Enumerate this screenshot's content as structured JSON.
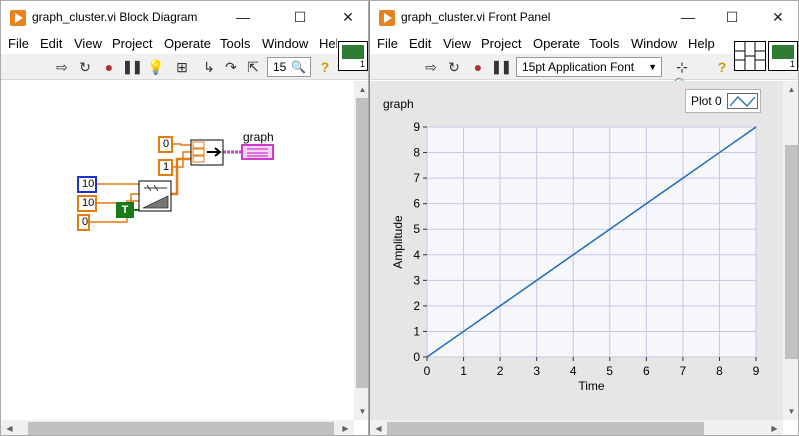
{
  "block_diagram": {
    "title": "graph_cluster.vi Block Diagram",
    "window_controls": {
      "minimize": "—",
      "maximize": "☐",
      "close": "✕"
    },
    "menu": [
      "File",
      "Edit",
      "View",
      "Project",
      "Operate",
      "Tools",
      "Window",
      "Help"
    ],
    "toolbar": {
      "zoom_label": "15"
    },
    "constants": {
      "x0": "0",
      "dx": "1",
      "samples": "10",
      "amplitude": "10",
      "offset": "0",
      "reset": "T"
    },
    "indicator_label": "graph",
    "connector_icon_number": "1"
  },
  "front_panel": {
    "title": "graph_cluster.vi Front Panel",
    "window_controls": {
      "minimize": "—",
      "maximize": "☐",
      "close": "✕"
    },
    "menu": [
      "File",
      "Edit",
      "View",
      "Project",
      "Operate",
      "Tools",
      "Window",
      "Help"
    ],
    "toolbar": {
      "font": "15pt Application Font"
    },
    "connector_icon_number": "1",
    "graph_label": "graph",
    "legend": {
      "plot_name": "Plot 0"
    }
  },
  "colors": {
    "plot_line": "#1f6bb5",
    "plot_bg": "#f5f7fa",
    "grid": "#c9c6e8",
    "wire_int": "#e07c10",
    "wire_cluster": "#cc3bcc"
  },
  "chart_data": {
    "type": "line",
    "title": "",
    "xlabel": "Time",
    "ylabel": "Amplitude",
    "xlim": [
      0,
      9
    ],
    "ylim": [
      0,
      9
    ],
    "xticks": [
      0,
      1,
      2,
      3,
      4,
      5,
      6,
      7,
      8,
      9
    ],
    "yticks": [
      0,
      1,
      2,
      3,
      4,
      5,
      6,
      7,
      8,
      9
    ],
    "grid": true,
    "series": [
      {
        "name": "Plot 0",
        "x": [
          0,
          1,
          2,
          3,
          4,
          5,
          6,
          7,
          8,
          9
        ],
        "y": [
          0,
          1,
          2,
          3,
          4,
          5,
          6,
          7,
          8,
          9
        ]
      }
    ]
  }
}
